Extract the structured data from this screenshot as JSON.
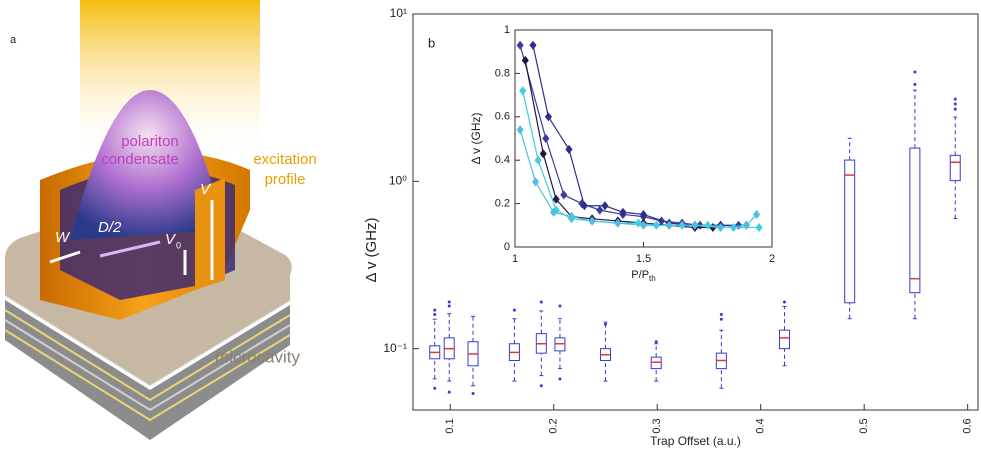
{
  "panel_a": {
    "label": "a",
    "condensate_1": "polariton",
    "condensate_2": "condensate",
    "excitation_1": "excitation",
    "excitation_2": "profile",
    "w": "W",
    "d": "D/2",
    "v": "V",
    "v0": "V",
    "v0_sub": "0",
    "cavity": "microcavity"
  },
  "chart_data": [
    {
      "type": "box",
      "panel_label": "b",
      "xlabel": "Trap Offset (a.u.)",
      "ylabel": "Δ v (GHz)",
      "log_y": true,
      "box_color": "#3a3acc",
      "median_color": "#e03838",
      "xlim": [
        0.064,
        0.61
      ],
      "xticks": [
        0.1,
        0.2,
        0.3,
        0.4,
        0.5,
        0.6
      ],
      "ylim": [
        0.043,
        10
      ],
      "yticks": [
        {
          "value": 0.1,
          "label": "10⁻¹"
        },
        {
          "value": 1,
          "label": "10⁰"
        },
        {
          "value": 10,
          "label": "10¹"
        }
      ],
      "x": [
        0.085,
        0.099,
        0.122,
        0.162,
        0.188,
        0.206,
        0.25,
        0.299,
        0.362,
        0.423,
        0.486,
        0.549,
        0.588
      ],
      "whisker_low": [
        0.066,
        0.064,
        0.06,
        0.064,
        0.069,
        0.076,
        0.064,
        0.064,
        0.058,
        0.079,
        0.151,
        0.151,
        0.6
      ],
      "q1": [
        0.087,
        0.087,
        0.079,
        0.085,
        0.094,
        0.097,
        0.085,
        0.076,
        0.076,
        0.1,
        0.188,
        0.216,
        1.01
      ],
      "median": [
        0.095,
        0.1,
        0.093,
        0.095,
        0.107,
        0.107,
        0.092,
        0.083,
        0.085,
        0.116,
        1.09,
        0.262,
        1.3
      ],
      "q3": [
        0.104,
        0.116,
        0.11,
        0.107,
        0.123,
        0.116,
        0.1,
        0.089,
        0.094,
        0.129,
        1.34,
        1.58,
        1.43
      ],
      "whisker_high": [
        0.15,
        0.162,
        0.156,
        0.151,
        0.168,
        0.151,
        0.144,
        0.107,
        0.129,
        0.179,
        1.81,
        3.51,
        2.42
      ],
      "outliers": [
        [
          0.17,
          0.16,
          0.058
        ],
        [
          0.19,
          0.18,
          0.055
        ],
        [
          0.054
        ],
        [
          0.17
        ],
        [
          0.19,
          0.06
        ],
        [
          0.18,
          0.066
        ],
        [
          0.14
        ],
        [
          0.11
        ],
        [
          0.16,
          0.15
        ],
        [
          0.19
        ],
        [],
        [
          4.5,
          3.8
        ],
        [
          3.1,
          2.9,
          2.7
        ]
      ]
    },
    {
      "type": "line",
      "xlabel": "P/P",
      "xlabel_sub": "th",
      "ylabel": "Δ v (GHz)",
      "xlim": [
        1,
        2
      ],
      "xticks": [
        1,
        1.5,
        2
      ],
      "ylim": [
        0,
        1
      ],
      "yticks": [
        0,
        0.2,
        0.4,
        0.6,
        0.8,
        1
      ],
      "series": [
        {
          "color": "#3b3b9e",
          "x": [
            1.02,
            1.12,
            1.19,
            1.26,
            1.33,
            1.42,
            1.5,
            1.57,
            1.65,
            1.72,
            1.8,
            1.87
          ],
          "values": [
            0.93,
            0.5,
            0.24,
            0.2,
            0.17,
            0.15,
            0.14,
            0.12,
            0.11,
            0.1,
            0.1,
            0.1
          ]
        },
        {
          "color": "#2e2e8c",
          "x": [
            1.07,
            1.13,
            1.21,
            1.27,
            1.35,
            1.42,
            1.5,
            1.6,
            1.7,
            1.8,
            1.9
          ],
          "values": [
            0.93,
            0.6,
            0.45,
            0.19,
            0.19,
            0.16,
            0.15,
            0.11,
            0.1,
            0.1,
            0.1
          ]
        },
        {
          "color": "#201a40",
          "x": [
            1.04,
            1.11,
            1.16,
            1.22,
            1.3,
            1.4,
            1.5,
            1.6,
            1.7,
            1.77
          ],
          "values": [
            0.86,
            0.43,
            0.22,
            0.14,
            0.13,
            0.12,
            0.11,
            0.1,
            0.09,
            0.09
          ]
        },
        {
          "color": "#3cd0dc",
          "x": [
            1.03,
            1.09,
            1.16,
            1.22,
            1.3,
            1.4,
            1.48,
            1.55,
            1.65,
            1.75,
            1.85,
            1.95
          ],
          "values": [
            0.72,
            0.4,
            0.17,
            0.13,
            0.12,
            0.11,
            0.11,
            0.1,
            0.1,
            0.1,
            0.09,
            0.09
          ]
        },
        {
          "color": "#50bde0",
          "x": [
            1.02,
            1.08,
            1.15,
            1.22,
            1.3,
            1.4,
            1.5,
            1.6,
            1.7,
            1.8,
            1.9,
            1.94
          ],
          "values": [
            0.54,
            0.3,
            0.16,
            0.14,
            0.12,
            0.11,
            0.1,
            0.1,
            0.1,
            0.09,
            0.1,
            0.15
          ]
        }
      ]
    }
  ]
}
